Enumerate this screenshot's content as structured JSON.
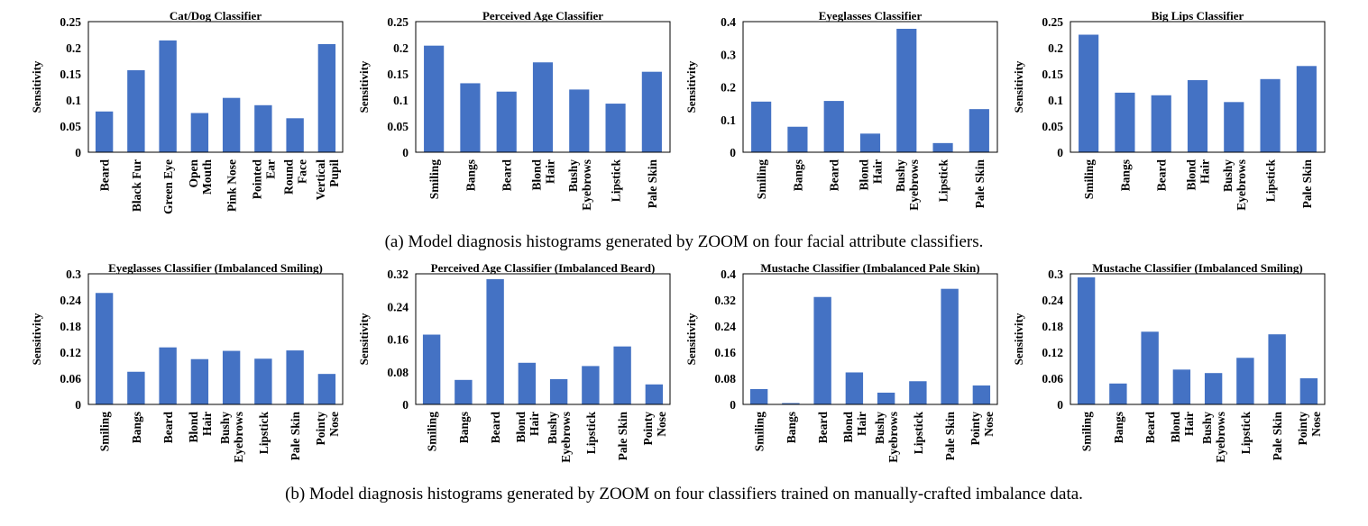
{
  "captions": {
    "a": "(a) Model diagnosis histograms generated by ZOOM on four facial attribute classifiers.",
    "b": "(b) Model diagnosis histograms generated by ZOOM on four classifiers trained on manually-crafted imbalance data."
  },
  "colors": {
    "bar": "#4472C4",
    "axis": "#000000"
  },
  "chart_data": [
    {
      "type": "bar",
      "title": "Cat/Dog Classifier",
      "ylabel": "Sensitivity",
      "xlabel": "",
      "ylim": [
        0,
        0.25
      ],
      "yticks": [
        "0",
        "0.05",
        "0.1",
        "0.15",
        "0.2",
        "0.25"
      ],
      "categories": [
        [
          "Beard"
        ],
        [
          "Black Fur"
        ],
        [
          "Green Eye"
        ],
        [
          "Open",
          "Mouth"
        ],
        [
          "Pink Nose"
        ],
        [
          "Pointed",
          "Ear"
        ],
        [
          "Round",
          "Face"
        ],
        [
          "Vertical",
          "Pupil"
        ]
      ],
      "values": [
        0.078,
        0.157,
        0.214,
        0.075,
        0.104,
        0.09,
        0.065,
        0.207
      ]
    },
    {
      "type": "bar",
      "title": "Perceived Age Classifier",
      "ylabel": "Sensitivity",
      "xlabel": "",
      "ylim": [
        0,
        0.25
      ],
      "yticks": [
        "0",
        "0.05",
        "0.1",
        "0.15",
        "0.2",
        "0.25"
      ],
      "categories": [
        [
          "Smiling"
        ],
        [
          "Bangs"
        ],
        [
          "Beard"
        ],
        [
          "Blond",
          "Hair"
        ],
        [
          "Bushy",
          "Eyebrows"
        ],
        [
          "Lipstick"
        ],
        [
          "Pale Skin"
        ]
      ],
      "values": [
        0.204,
        0.132,
        0.116,
        0.172,
        0.12,
        0.093,
        0.154
      ]
    },
    {
      "type": "bar",
      "title": "Eyeglasses Classifier",
      "ylabel": "Sensitivity",
      "xlabel": "",
      "ylim": [
        0,
        0.4
      ],
      "yticks": [
        "0",
        "0.1",
        "0.2",
        "0.3",
        "0.4"
      ],
      "categories": [
        [
          "Smiling"
        ],
        [
          "Bangs"
        ],
        [
          "Beard"
        ],
        [
          "Blond",
          "Hair"
        ],
        [
          "Bushy",
          "Eyebrows"
        ],
        [
          "Lipstick"
        ],
        [
          "Pale Skin"
        ]
      ],
      "values": [
        0.155,
        0.078,
        0.157,
        0.057,
        0.378,
        0.028,
        0.132
      ]
    },
    {
      "type": "bar",
      "title": "Big Lips Classifier",
      "ylabel": "Sensitivity",
      "xlabel": "",
      "ylim": [
        0,
        0.25
      ],
      "yticks": [
        "0",
        "0.05",
        "0.1",
        "0.15",
        "0.2",
        "0.25"
      ],
      "categories": [
        [
          "Smiling"
        ],
        [
          "Bangs"
        ],
        [
          "Beard"
        ],
        [
          "Blond",
          "Hair"
        ],
        [
          "Bushy",
          "Eyebrows"
        ],
        [
          "Lipstick"
        ],
        [
          "Pale Skin"
        ]
      ],
      "values": [
        0.225,
        0.114,
        0.109,
        0.138,
        0.096,
        0.14,
        0.165
      ]
    },
    {
      "type": "bar",
      "title": "Eyeglasses Classifier (Imbalanced Smiling)",
      "ylabel": "Sensitivity",
      "xlabel": "",
      "ylim": [
        0,
        0.3
      ],
      "yticks": [
        "0",
        "0.06",
        "0.12",
        "0.18",
        "0.24",
        "0.3"
      ],
      "categories": [
        [
          "Smiling"
        ],
        [
          "Bangs"
        ],
        [
          "Beard"
        ],
        [
          "Blond",
          "Hair"
        ],
        [
          "Bushy",
          "Eyebrows"
        ],
        [
          "Lipstick"
        ],
        [
          "Pale Skin"
        ],
        [
          "Pointy",
          "Nose"
        ]
      ],
      "values": [
        0.256,
        0.075,
        0.131,
        0.104,
        0.123,
        0.105,
        0.124,
        0.07
      ]
    },
    {
      "type": "bar",
      "title": "Perceived Age Classifier (Imbalanced Beard)",
      "ylabel": "Sensitivity",
      "xlabel": "",
      "ylim": [
        0,
        0.32
      ],
      "yticks": [
        "0",
        "0.08",
        "0.16",
        "0.24",
        "0.32"
      ],
      "categories": [
        [
          "Smiling"
        ],
        [
          "Bangs"
        ],
        [
          "Beard"
        ],
        [
          "Blond",
          "Hair"
        ],
        [
          "Bushy",
          "Eyebrows"
        ],
        [
          "Lipstick"
        ],
        [
          "Pale Skin"
        ],
        [
          "Pointy",
          "Nose"
        ]
      ],
      "values": [
        0.171,
        0.06,
        0.307,
        0.102,
        0.062,
        0.094,
        0.142,
        0.049
      ]
    },
    {
      "type": "bar",
      "title": "Mustache Classifier (Imbalanced Pale Skin)",
      "ylabel": "Sensitivity",
      "xlabel": "",
      "ylim": [
        0,
        0.4
      ],
      "yticks": [
        "0",
        "0.08",
        "0.16",
        "0.24",
        "0.32",
        "0.4"
      ],
      "categories": [
        [
          "Smiling"
        ],
        [
          "Bangs"
        ],
        [
          "Beard"
        ],
        [
          "Blond",
          "Hair"
        ],
        [
          "Bushy",
          "Eyebrows"
        ],
        [
          "Lipstick"
        ],
        [
          "Pale Skin"
        ],
        [
          "Pointy",
          "Nose"
        ]
      ],
      "values": [
        0.047,
        0.004,
        0.329,
        0.098,
        0.036,
        0.071,
        0.354,
        0.058
      ]
    },
    {
      "type": "bar",
      "title": "Mustache Classifier (Imbalanced Smiling)",
      "ylabel": "Sensitivity",
      "xlabel": "",
      "ylim": [
        0,
        0.3
      ],
      "yticks": [
        "0",
        "0.06",
        "0.12",
        "0.18",
        "0.24",
        "0.3"
      ],
      "categories": [
        [
          "Smiling"
        ],
        [
          "Bangs"
        ],
        [
          "Beard"
        ],
        [
          "Blond",
          "Hair"
        ],
        [
          "Bushy",
          "Eyebrows"
        ],
        [
          "Lipstick"
        ],
        [
          "Pale Skin"
        ],
        [
          "Pointy",
          "Nose"
        ]
      ],
      "values": [
        0.292,
        0.048,
        0.167,
        0.08,
        0.072,
        0.107,
        0.161,
        0.06
      ]
    }
  ]
}
